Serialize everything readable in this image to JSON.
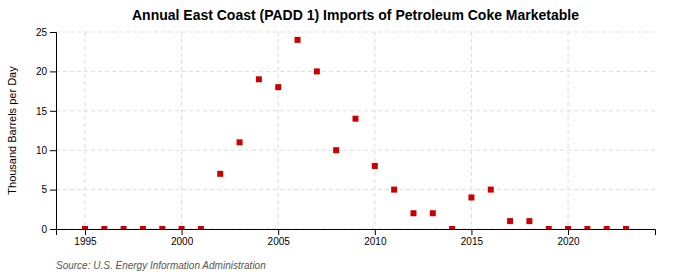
{
  "chart_data": {
    "type": "scatter",
    "title": "Annual East Coast (PADD 1) Imports of Petroleum Coke Marketable",
    "ylabel": "Thousand Barrels per Day",
    "annotation": "Source: U.S. Energy Information Administration",
    "x": [
      1995,
      1996,
      1997,
      1998,
      1999,
      2000,
      2001,
      2002,
      2003,
      2004,
      2005,
      2006,
      2007,
      2008,
      2009,
      2010,
      2011,
      2012,
      2013,
      2014,
      2015,
      2016,
      2017,
      2018,
      2019,
      2020,
      2021,
      2022,
      2023
    ],
    "values": [
      0,
      0,
      0,
      0,
      0,
      0,
      0,
      7,
      11,
      19,
      18,
      24,
      20,
      10,
      14,
      8,
      5,
      2,
      2,
      0,
      4,
      5,
      1,
      1,
      0,
      0,
      0,
      0,
      0
    ],
    "color": "#cc0000",
    "marker": "square",
    "xlim": [
      1993.5,
      2024.5
    ],
    "xticks": [
      1995,
      2000,
      2005,
      2010,
      2015,
      2020
    ],
    "ylim": [
      0,
      25
    ],
    "yticks": [
      0,
      5,
      10,
      15,
      20,
      25
    ],
    "grid": true
  }
}
